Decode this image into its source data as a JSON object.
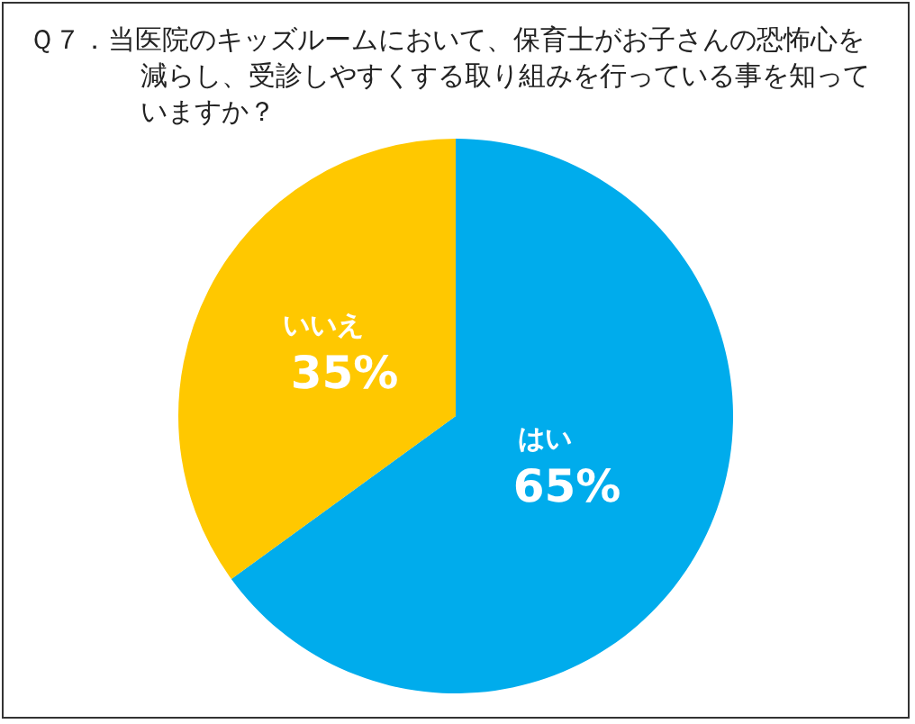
{
  "chart_data": {
    "type": "pie",
    "title": "Ｑ７．当医院のキッズルームにおいて、保育士がお子さんの恐怖心を減らし、受診しやすくする取り組みを行っている事を知っていますか？",
    "categories": [
      "はい",
      "いいえ"
    ],
    "values": [
      65,
      35
    ],
    "value_labels": [
      "65%",
      "35%"
    ],
    "colors": [
      "#00acec",
      "#ffc800"
    ]
  }
}
